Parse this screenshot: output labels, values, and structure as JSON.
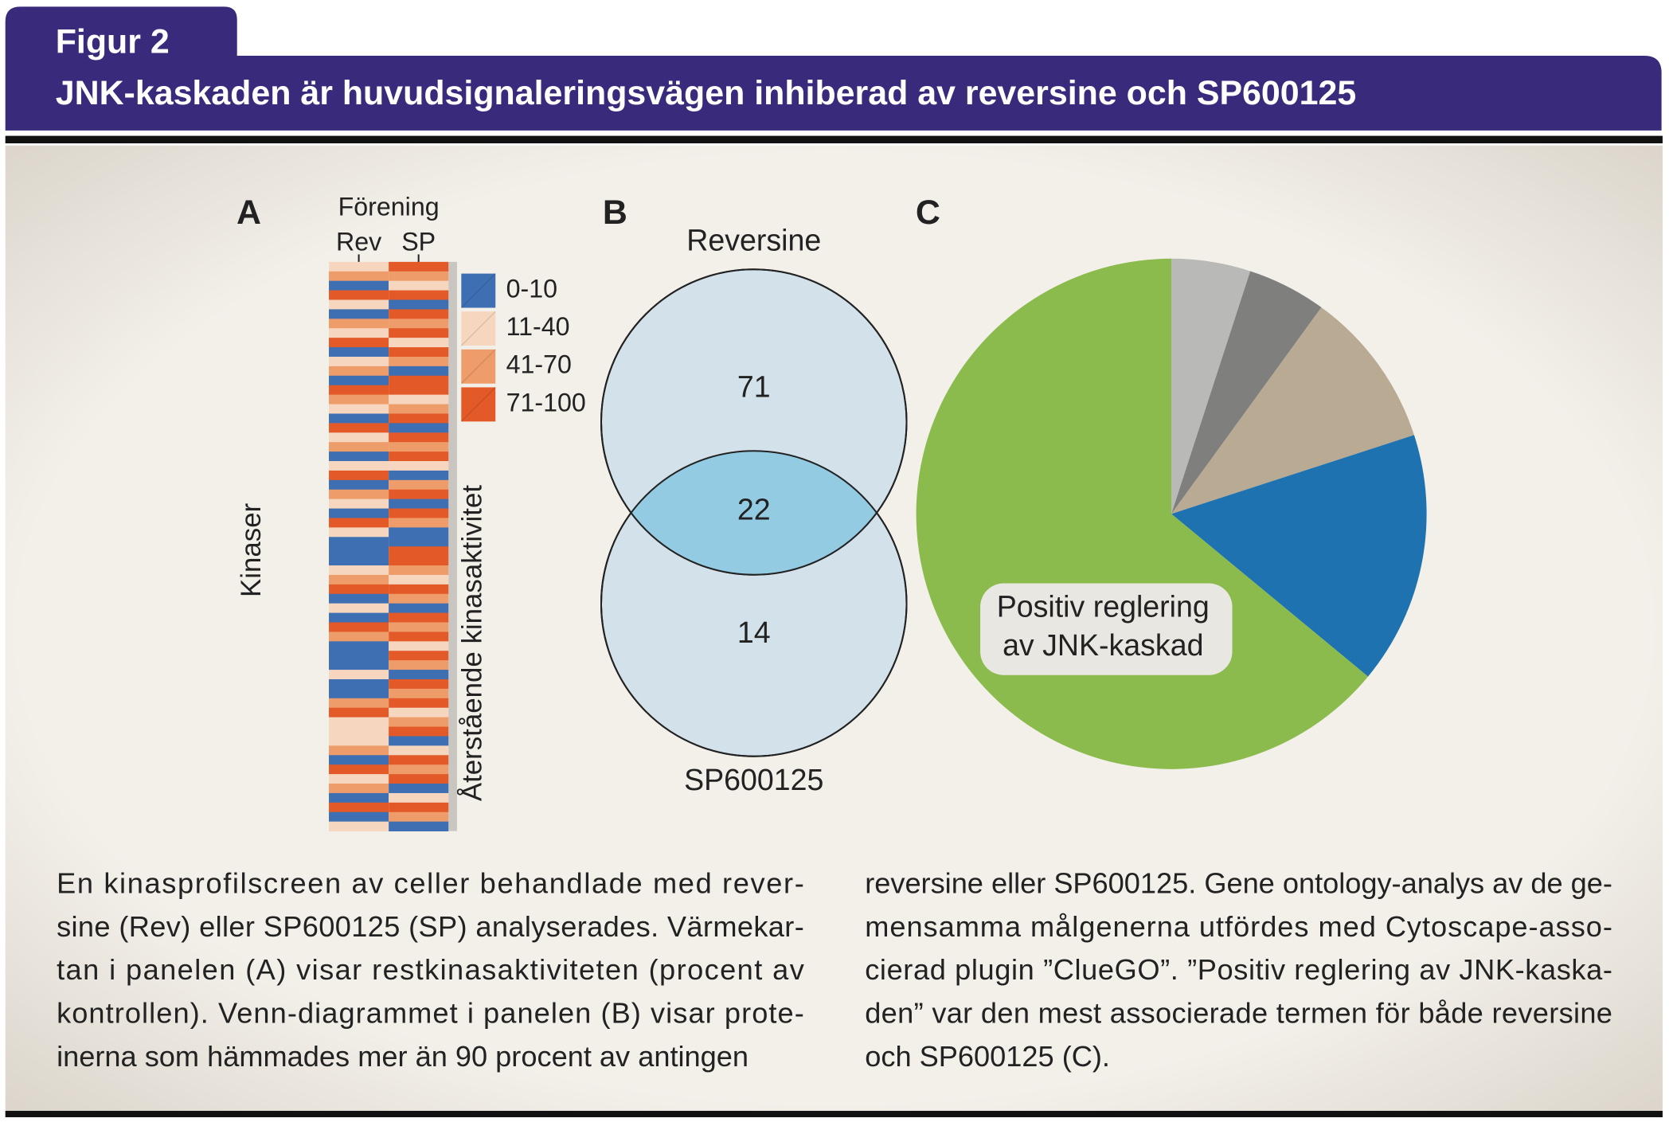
{
  "header": {
    "label": "Figur 2",
    "title": "JNK-kaskaden är huvudsignaleringsvägen inhiberad av reversine och SP600125"
  },
  "panels": {
    "a": {
      "letter": "A",
      "group_label": "Förening",
      "columns": [
        "Rev",
        "SP"
      ],
      "y_label": "Kinaser",
      "legend_title": "Återstående kinasaktivitet",
      "legend": [
        {
          "label": "0-10",
          "color": "#3e6fb2",
          "range": [
            0,
            10
          ]
        },
        {
          "label": "11-40",
          "color": "#f6d6be",
          "range": [
            11,
            40
          ]
        },
        {
          "label": "41-70",
          "color": "#ee9c6a",
          "range": [
            41,
            70
          ]
        },
        {
          "label": "71-100",
          "color": "#e35a28",
          "range": [
            71,
            100
          ]
        }
      ],
      "values": [
        [
          25,
          55,
          5,
          85,
          25,
          5,
          55,
          25,
          85,
          5,
          25,
          55,
          5,
          85,
          55,
          25,
          5,
          85,
          25,
          55,
          5,
          25,
          85,
          5,
          55,
          25,
          5,
          85,
          25,
          5,
          5,
          5,
          25,
          55,
          85,
          5,
          25,
          5,
          85,
          55,
          5,
          5,
          5,
          25,
          5,
          5,
          55,
          85,
          25,
          25,
          25,
          55,
          5,
          85,
          25,
          55,
          5,
          85,
          5,
          25
        ],
        [
          85,
          55,
          25,
          85,
          5,
          85,
          55,
          85,
          25,
          85,
          55,
          5,
          85,
          85,
          25,
          55,
          85,
          5,
          85,
          55,
          85,
          25,
          5,
          55,
          85,
          5,
          85,
          55,
          5,
          5,
          85,
          85,
          55,
          25,
          85,
          55,
          5,
          85,
          55,
          85,
          25,
          85,
          55,
          5,
          85,
          55,
          85,
          25,
          55,
          85,
          5,
          25,
          85,
          55,
          85,
          5,
          25,
          85,
          55,
          5
        ]
      ]
    },
    "b": {
      "letter": "B",
      "sets": [
        "Reversine",
        "SP600125"
      ],
      "counts": {
        "only_first": 71,
        "both": 22,
        "only_second": 14
      }
    },
    "c": {
      "letter": "C",
      "type": "pie",
      "values": [
        5,
        5,
        10,
        16,
        64
      ],
      "colors": [
        "#b9b9b7",
        "#7f7f7e",
        "#b9aa93",
        "#1e72b0",
        "#8bbb4c"
      ],
      "label": [
        "Positiv reglering",
        "av JNK-kaskad"
      ]
    }
  },
  "caption": {
    "columns": [
      [
        "En kinasprofilscreen av celler behandlade med rever-",
        "sine (Rev) eller SP600125 (SP) analyserades. Värmekar-",
        "tan i panelen (A) visar restkinasaktiviteten (procent av",
        "kontrollen). Venn-diagrammet i panelen (B) visar prote-",
        "inerna som hämmades mer än 90 procent av antingen"
      ],
      [
        "reversine eller SP600125. Gene ontology-analys av de ge-",
        "mensamma målgenerna utfördes med Cytoscape-asso-",
        "cierad plugin ”ClueGO”. ”Positiv reglering av JNK-kaska-",
        "den” var den mest associerade termen för både reversine",
        "och SP600125 (C)."
      ]
    ]
  }
}
